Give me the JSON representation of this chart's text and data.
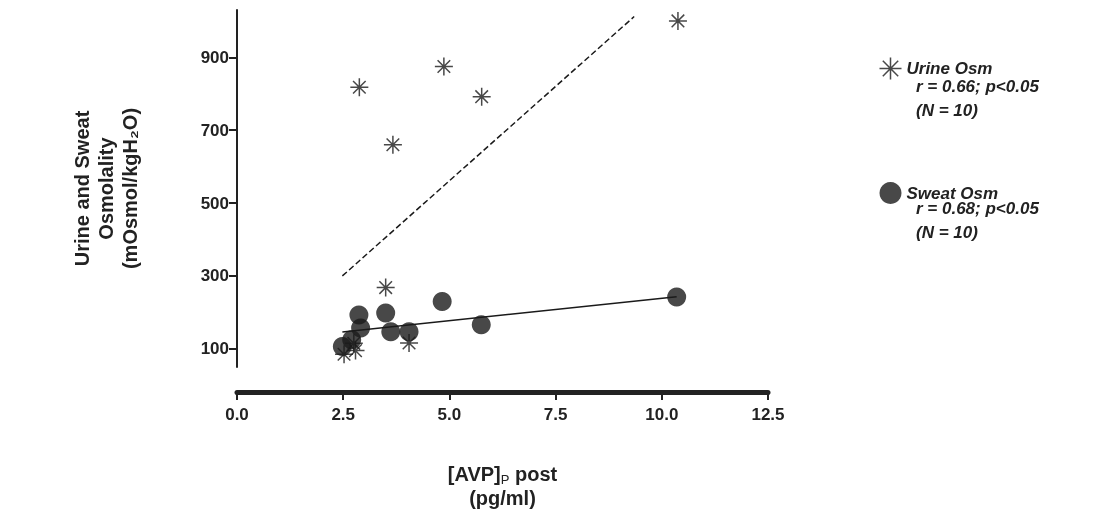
{
  "chart_data": {
    "type": "scatter",
    "xlabel": "[AVP]$_{P}$ post\n(pg/ml)",
    "ylabel": "Urine and Sweat\nOsmolality\n(mOsmol/kgH₂O)",
    "xlim": [
      0,
      12.5
    ],
    "ylim": [
      50,
      1030
    ],
    "xticks": [
      {
        "value": 0,
        "label": "0.0"
      },
      {
        "value": 2.5,
        "label": "2.5"
      },
      {
        "value": 5,
        "label": "5.0"
      },
      {
        "value": 7.5,
        "label": "7.5"
      },
      {
        "value": 10,
        "label": "10.0"
      },
      {
        "value": 12.5,
        "label": "12.5"
      }
    ],
    "yticks": [
      100,
      300,
      500,
      700,
      900
    ],
    "grid": false,
    "legend": "right",
    "series": [
      {
        "name": "Urine Osm",
        "color": "#1a1a1a",
        "marker": "cross",
        "x": [
          10.38,
          2.88,
          4.87,
          5.76,
          3.67,
          3.5,
          2.52,
          2.79,
          4.05,
          2.75
        ],
        "values": [
          1000,
          818,
          875,
          792,
          660,
          268,
          85,
          95,
          116,
          115
        ]
      },
      {
        "name": "Sweat Osm",
        "color": "#1a1a1a",
        "marker": "circle",
        "x": [
          2.87,
          3.5,
          4.83,
          5.75,
          10.35,
          2.48,
          2.91,
          3.62,
          4.05,
          2.7
        ],
        "values": [
          193,
          198,
          230,
          166,
          242,
          106,
          157,
          147,
          147,
          125
        ]
      },
      {
        "type": "line",
        "color": "#1a1a1a",
        "line_style": "dashed",
        "x": [
          2.48,
          9.35
        ],
        "values": [
          300,
          1012
        ]
      },
      {
        "type": "line",
        "color": "#1a1a1a",
        "line_style": "solid",
        "x": [
          2.48,
          10.35
        ],
        "values": [
          146,
          243
        ]
      }
    ],
    "annotations": [
      "r = 0.66; p<0.05\n(N = 10)",
      "r = 0.68; p<0.05\n(N = 10)"
    ]
  }
}
